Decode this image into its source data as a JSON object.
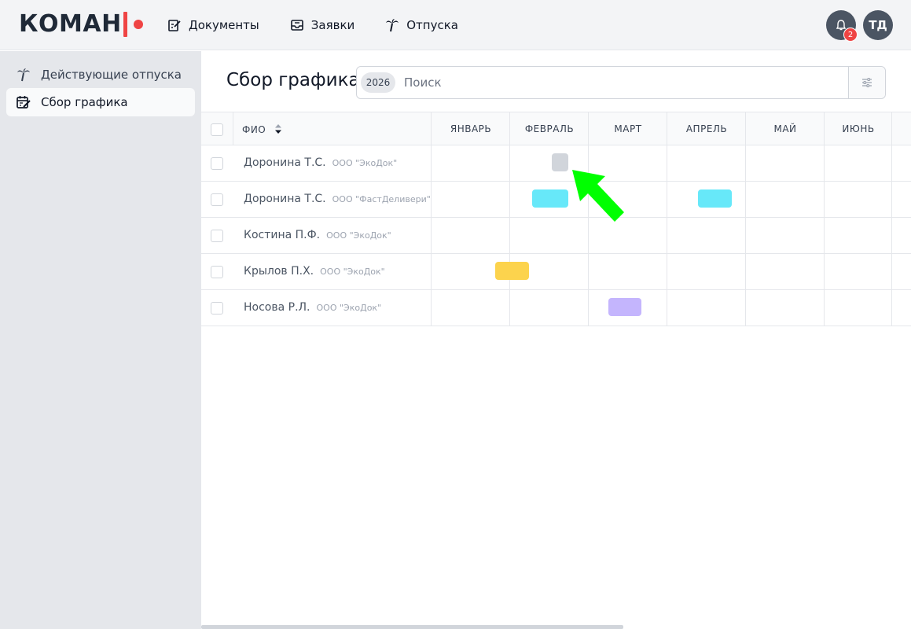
{
  "brand": {
    "name": "КОМАН"
  },
  "nav": [
    {
      "label": "Документы",
      "icon": "document-edit-icon"
    },
    {
      "label": "Заявки",
      "icon": "inbox-icon"
    },
    {
      "label": "Отпуска",
      "icon": "palm-tree-icon"
    }
  ],
  "header": {
    "notifications_count": "2",
    "user_initials": "ТД"
  },
  "sidebar": {
    "items": [
      {
        "label": "Действующие отпуска",
        "icon": "palm-tree-icon",
        "active": false
      },
      {
        "label": "Сбор графика",
        "icon": "calendar-edit-icon",
        "active": true
      }
    ]
  },
  "page": {
    "title": "Сбор графика"
  },
  "search": {
    "year": "2026",
    "placeholder": "Поиск"
  },
  "table": {
    "columns": {
      "name": "ФИО",
      "months": [
        "ЯНВАРЬ",
        "ФЕВРАЛЬ",
        "МАРТ",
        "АПРЕЛЬ",
        "МАЙ",
        "ИЮНЬ"
      ]
    },
    "rows": [
      {
        "name": "Доронина Т.С.",
        "org": "ООО \"ЭкоДок\""
      },
      {
        "name": "Доронина Т.С.",
        "org": "ООО \"ФастДеливери\""
      },
      {
        "name": "Костина П.Ф.",
        "org": "ООО \"ЭкоДок\""
      },
      {
        "name": "Крылов П.Х.",
        "org": "ООО \"ЭкоДок\""
      },
      {
        "name": "Носова Р.Л.",
        "org": "ООО \"ЭкоДок\""
      }
    ]
  },
  "colors": {
    "accent": "#ef4444",
    "vacation_gray": "#d1d5db",
    "vacation_cyan": "#67e8f9",
    "vacation_yellow": "#fcd34d",
    "vacation_purple": "#c4b5fd",
    "arrow": "#00ff00"
  }
}
